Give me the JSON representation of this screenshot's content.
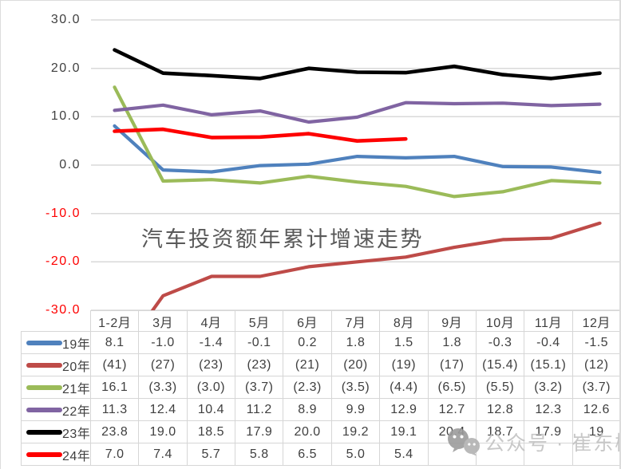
{
  "chart_data": {
    "type": "line",
    "title": "汽车投资额年累计增速走势",
    "categories": [
      "1-2月",
      "3月",
      "4月",
      "5月",
      "6月",
      "7月",
      "8月",
      "9月",
      "10月",
      "11月",
      "12月"
    ],
    "xlabel": "",
    "ylabel": "",
    "ylim": [
      -30,
      30
    ],
    "grid": true,
    "legend_position": "data-table-left",
    "yticks": [
      {
        "label": "30.0",
        "value": 30,
        "color": "#404040"
      },
      {
        "label": "20.0",
        "value": 20,
        "color": "#404040"
      },
      {
        "label": "10.0",
        "value": 10,
        "color": "#404040"
      },
      {
        "label": "0.0",
        "value": 0,
        "color": "#404040"
      },
      {
        "label": "-10.0",
        "value": -10,
        "color": "#fe0000"
      },
      {
        "label": "-20.0",
        "value": -20,
        "color": "#fe0000"
      },
      {
        "label": "-30.0",
        "value": -30,
        "color": "#fe0000"
      }
    ],
    "series": [
      {
        "name": "19年",
        "color": "#4F81BD",
        "values": [
          8.1,
          -1.0,
          -1.4,
          -0.1,
          0.2,
          1.8,
          1.5,
          1.8,
          -0.3,
          -0.4,
          -1.5
        ],
        "display": [
          "8.1",
          "-1.0",
          "-1.4",
          "-0.1",
          "0.2",
          "1.8",
          "1.5",
          "1.8",
          "-0.3",
          "-0.4",
          "-1.5"
        ]
      },
      {
        "name": "20年",
        "color": "#BE4B48",
        "values": [
          -41,
          -27,
          -23,
          -23,
          -21,
          -20,
          -19,
          -17,
          -15.4,
          -15.1,
          -12
        ],
        "display": [
          "(41)",
          "(27)",
          "(23)",
          "(23)",
          "(21)",
          "(20)",
          "(19)",
          "(17)",
          "(15.4)",
          "(15.1)",
          "(12)"
        ]
      },
      {
        "name": "21年",
        "color": "#9BBB59",
        "values": [
          16.1,
          -3.3,
          -3.0,
          -3.7,
          -2.3,
          -3.5,
          -4.4,
          -6.5,
          -5.5,
          -3.2,
          -3.7
        ],
        "display": [
          "16.1",
          "(3.3)",
          "(3.0)",
          "(3.7)",
          "(2.3)",
          "(3.5)",
          "(4.4)",
          "(6.5)",
          "(5.5)",
          "(3.2)",
          "(3.7)"
        ]
      },
      {
        "name": "22年",
        "color": "#8064A2",
        "values": [
          11.3,
          12.4,
          10.4,
          11.2,
          8.9,
          9.9,
          12.9,
          12.7,
          12.8,
          12.3,
          12.6
        ],
        "display": [
          "11.3",
          "12.4",
          "10.4",
          "11.2",
          "8.9",
          "9.9",
          "12.9",
          "12.7",
          "12.8",
          "12.3",
          "12.6"
        ]
      },
      {
        "name": "23年",
        "color": "#000000",
        "values": [
          23.8,
          19.0,
          18.5,
          17.9,
          20.0,
          19.2,
          19.1,
          20.4,
          18.7,
          17.9,
          19
        ],
        "display": [
          "23.8",
          "19.0",
          "18.5",
          "17.9",
          "20.0",
          "19.2",
          "19.1",
          "20.4",
          "18.7",
          "17.9",
          "19"
        ]
      },
      {
        "name": "24年",
        "color": "#FE0000",
        "values": [
          7.0,
          7.4,
          5.7,
          5.8,
          6.5,
          5.0,
          5.4,
          null,
          null,
          null,
          null
        ],
        "display": [
          "7.0",
          "7.4",
          "5.7",
          "5.8",
          "6.5",
          "5.0",
          "5.4",
          "",
          "",
          "",
          ""
        ]
      }
    ]
  },
  "watermark": {
    "icon": "wechat-icon",
    "text": "公众号 · 崔东树"
  },
  "colors": {
    "gridline": "#d9d9d9",
    "table_border": "#d6d6d6",
    "title_text": "#595959",
    "axis_text": "#404040",
    "negative_axis_text": "#fe0000"
  }
}
